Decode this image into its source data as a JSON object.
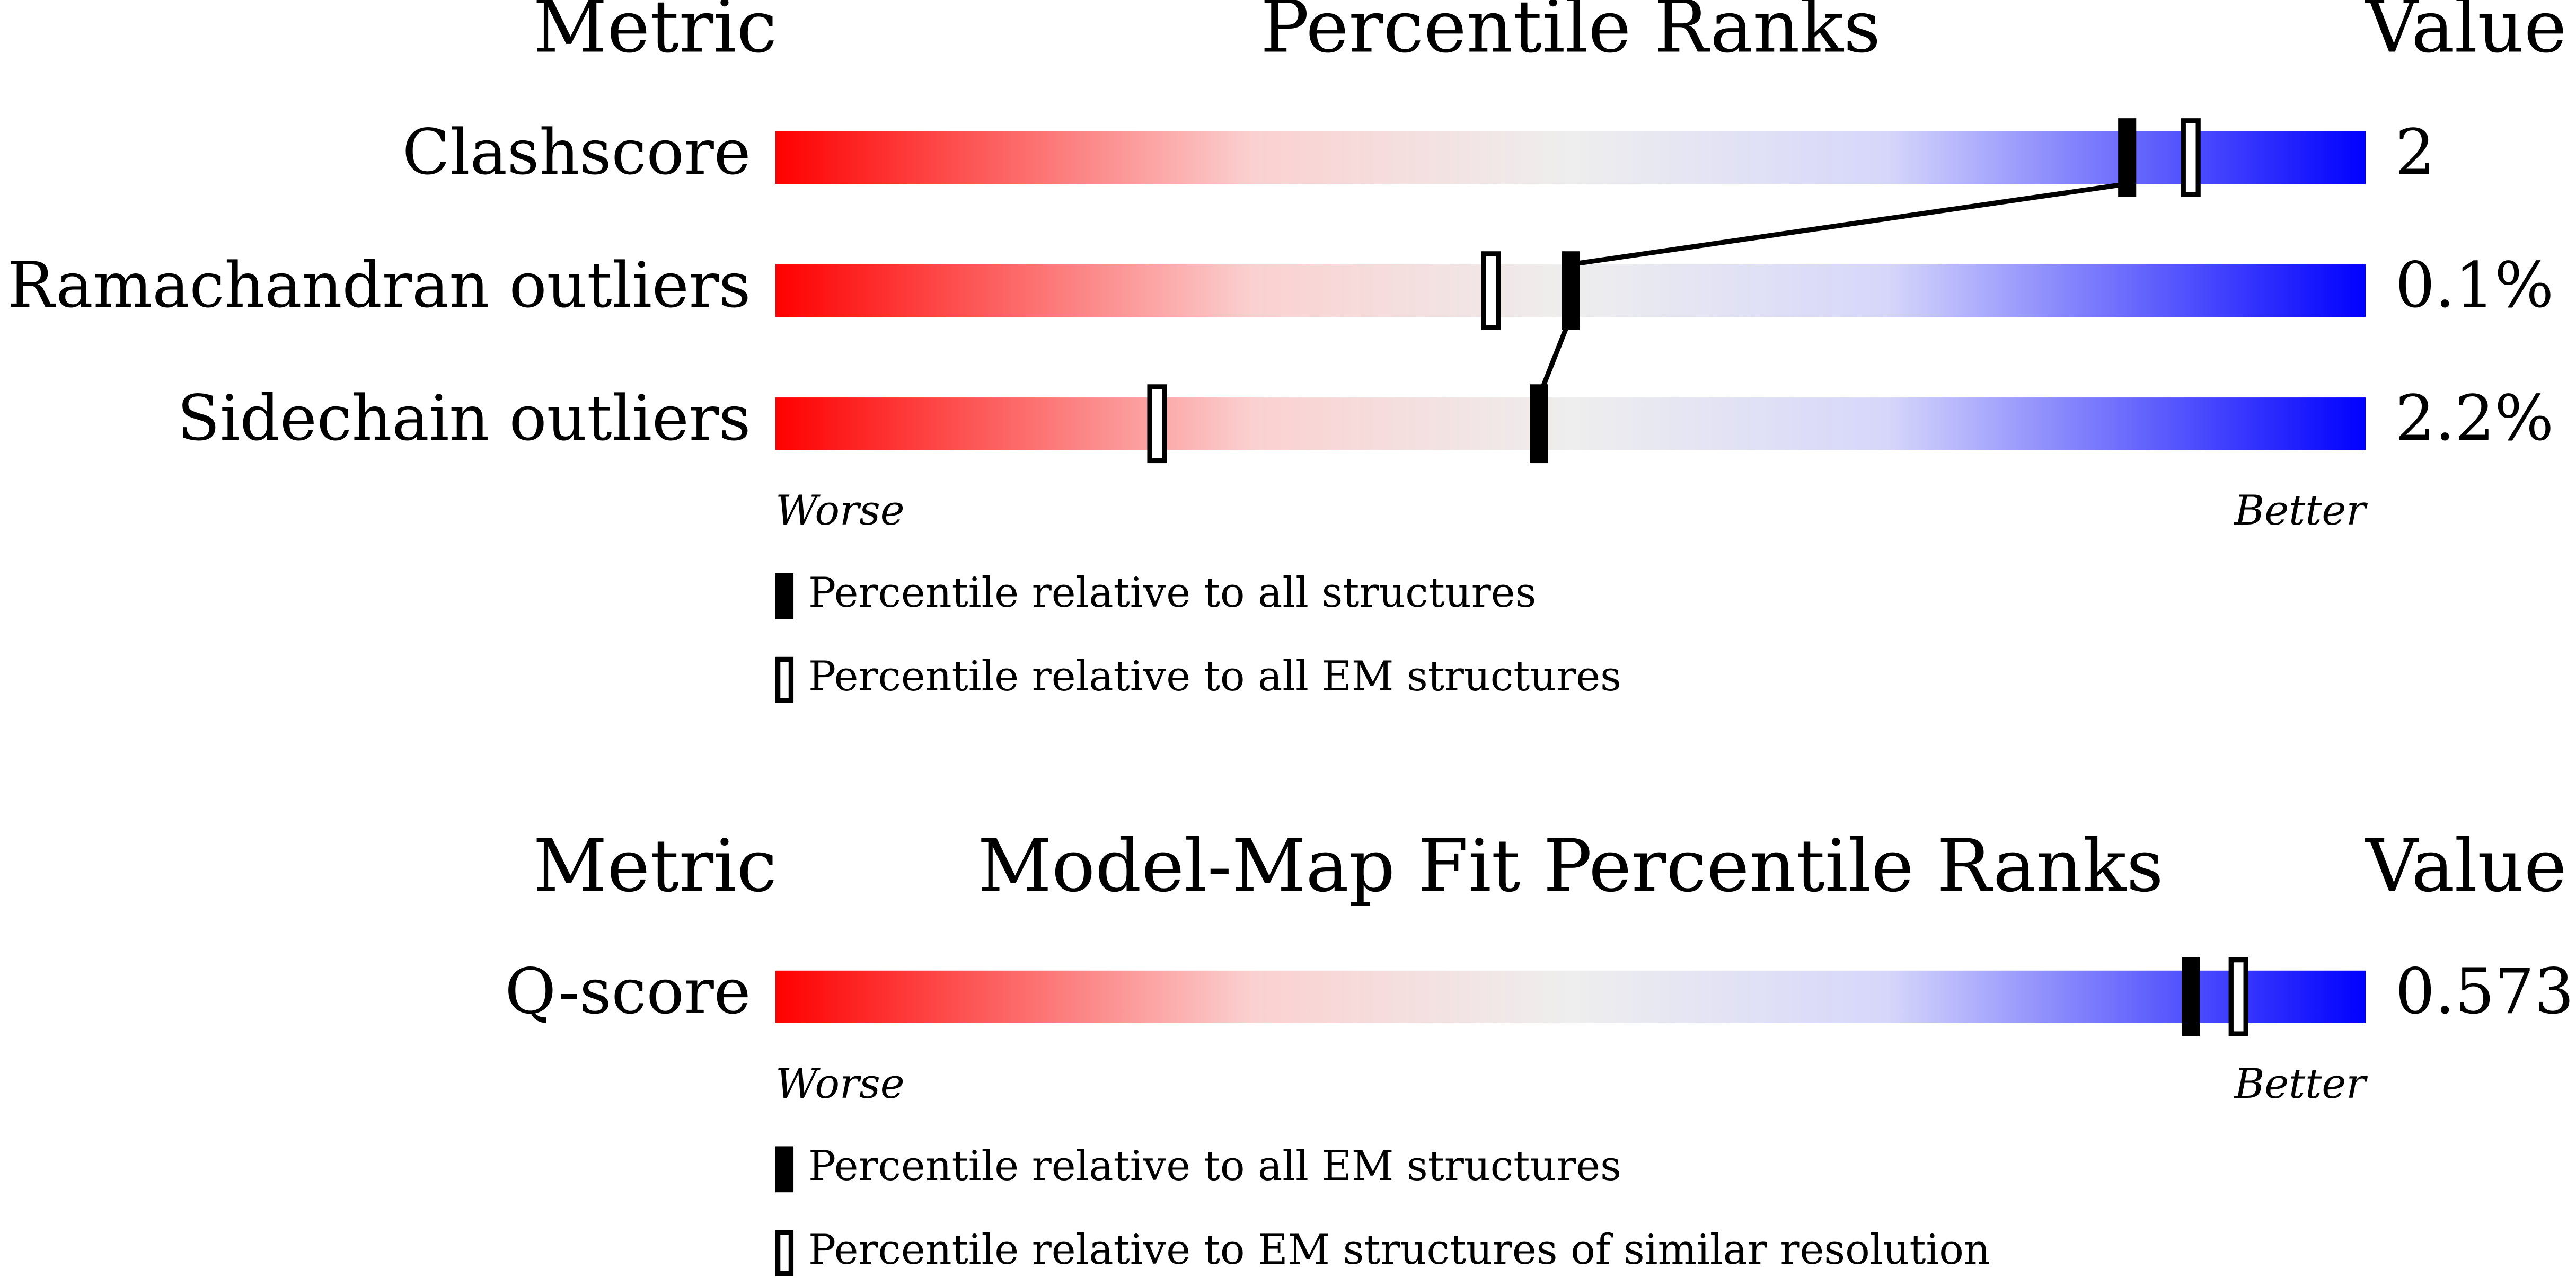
{
  "chart_data": [
    {
      "type": "percentile-slider",
      "metric_header": "Metric",
      "title": "Percentile Ranks",
      "value_header": "Value",
      "categories": [
        "Clashscore",
        "Ramachandran outliers",
        "Sidechain outliers"
      ],
      "metric_values": [
        "2",
        "0.1%",
        "2.2%"
      ],
      "xlim": [
        0,
        100
      ],
      "low_label": "Worse",
      "high_label": "Better",
      "connect_filled": true,
      "series": [
        {
          "name": "Percentile relative to all structures",
          "style": "filled",
          "color": "#000000",
          "values": [
            85,
            50,
            48
          ]
        },
        {
          "name": "Percentile relative to all EM structures",
          "style": "open",
          "color": "#000000",
          "values": [
            89,
            45,
            24
          ]
        }
      ]
    },
    {
      "type": "percentile-slider",
      "metric_header": "Metric",
      "title": "Model-Map Fit Percentile Ranks",
      "value_header": "Value",
      "categories": [
        "Q-score"
      ],
      "metric_values": [
        "0.573"
      ],
      "xlim": [
        0,
        100
      ],
      "low_label": "Worse",
      "high_label": "Better",
      "connect_filled": true,
      "series": [
        {
          "name": "Percentile relative to all EM structures",
          "style": "filled",
          "color": "#000000",
          "values": [
            89
          ]
        },
        {
          "name": "Percentile relative to EM structures of similar resolution",
          "style": "open",
          "color": "#000000",
          "values": [
            92
          ]
        }
      ]
    }
  ]
}
